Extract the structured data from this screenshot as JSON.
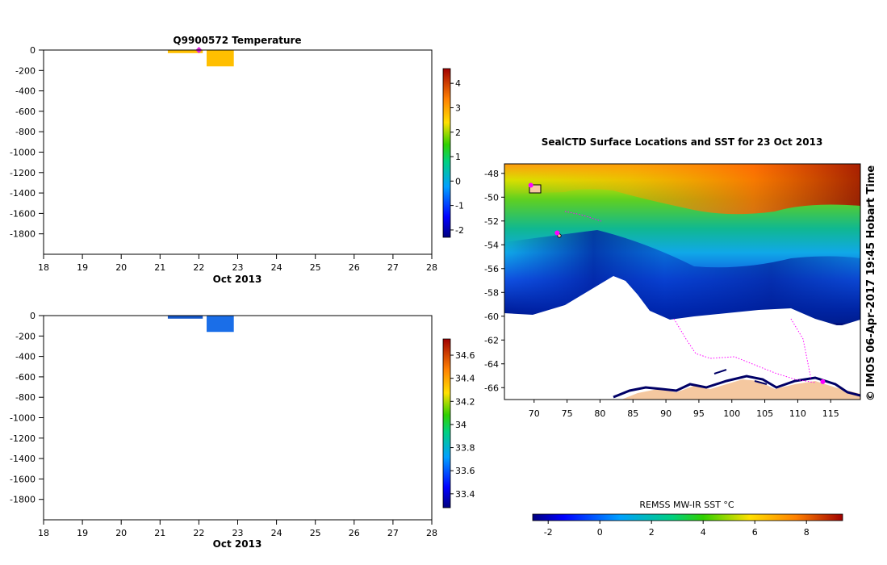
{
  "charts": {
    "temperature_profile": {
      "title": "Q9900572  Temperature",
      "xlabel": "Oct 2013",
      "x_ticks": [
        "18",
        "19",
        "20",
        "21",
        "22",
        "23",
        "24",
        "25",
        "26",
        "27",
        "28"
      ],
      "y_ticks": [
        "0",
        "-200",
        "-400",
        "-600",
        "-800",
        "-1000",
        "-1200",
        "-1400",
        "-1600",
        "-1800"
      ],
      "colorbar_ticks": [
        "-2",
        "-1",
        "0",
        "1",
        "2",
        "3",
        "4"
      ],
      "colors": {
        "fill": "#ffbf00",
        "marker": "#e020e0"
      }
    },
    "salinity_profile": {
      "xlabel": "Oct 2013",
      "x_ticks": [
        "18",
        "19",
        "20",
        "21",
        "22",
        "23",
        "24",
        "25",
        "26",
        "27",
        "28"
      ],
      "y_ticks": [
        "0",
        "-200",
        "-400",
        "-600",
        "-800",
        "-1000",
        "-1200",
        "-1400",
        "-1600",
        "-1800"
      ],
      "colorbar_ticks": [
        "33.4",
        "33.6",
        "33.8",
        "34",
        "34.2",
        "34.4",
        "34.6"
      ],
      "colors": {
        "fill": "#1a6ee8",
        "fill_dark": "#1456c8"
      }
    },
    "sst_map": {
      "title": "SealCTD Surface Locations and SST for 23 Oct 2013",
      "x_ticks": [
        "70",
        "75",
        "80",
        "85",
        "90",
        "95",
        "100",
        "105",
        "110",
        "115"
      ],
      "y_ticks": [
        "-48",
        "-50",
        "-52",
        "-54",
        "-56",
        "-58",
        "-60",
        "-62",
        "-64",
        "-66"
      ],
      "colorbar_label": "REMSS MW-IR SST °C",
      "colorbar_ticks": [
        "-2",
        "0",
        "2",
        "4",
        "6",
        "8"
      ],
      "stamp": "© IMOS 06-Apr-2017 19:45 Hobart Time",
      "colors": {
        "track": "#ff00ff",
        "land": "#f5c8a0",
        "coast": "#000066"
      }
    }
  },
  "chart_data": [
    {
      "type": "bar",
      "title": "Q9900572  Temperature",
      "xlabel": "Oct 2013",
      "ylabel": "",
      "xlim": [
        18,
        28
      ],
      "ylim": [
        -2000,
        0
      ],
      "profiles": [
        {
          "x_start": 21.2,
          "x_end": 22.1,
          "depth": -30
        },
        {
          "x_start": 22.2,
          "x_end": 22.9,
          "depth": -160
        }
      ],
      "marker": {
        "x": 22.0,
        "y": 0
      },
      "colorbar_range": [
        -2.3,
        4.6
      ]
    },
    {
      "type": "bar",
      "title": "",
      "xlabel": "Oct 2013",
      "ylabel": "",
      "xlim": [
        18,
        28
      ],
      "ylim": [
        -2000,
        0
      ],
      "profiles": [
        {
          "x_start": 21.2,
          "x_end": 22.1,
          "depth": -30
        },
        {
          "x_start": 22.2,
          "x_end": 22.9,
          "depth": -160
        }
      ],
      "colorbar_range": [
        33.28,
        34.74
      ]
    },
    {
      "type": "heatmap",
      "title": "SealCTD Surface Locations and SST for 23 Oct 2013",
      "xlabel": "",
      "ylabel": "",
      "xlim": [
        65.5,
        119.5
      ],
      "ylim": [
        -67,
        -47.2
      ],
      "colorbar_label": "REMSS MW-IR SST °C",
      "colorbar_range": [
        -2.6,
        9.4
      ],
      "sst_gradient": [
        {
          "lat": -47.5,
          "sst": 5.5
        },
        {
          "lat": -50,
          "sst": 3.0
        },
        {
          "lat": -52,
          "sst": 1.5
        },
        {
          "lat": -54,
          "sst": 0.5
        },
        {
          "lat": -56,
          "sst": -0.5
        },
        {
          "lat": -58,
          "sst": -1.2
        },
        {
          "lat": -60,
          "sst": -1.8
        }
      ],
      "seal_locations": [
        {
          "lon": 69.5,
          "lat": -49.0
        },
        {
          "lon": 73.5,
          "lat": -53.0
        },
        {
          "lon": 113.8,
          "lat": -65.5
        }
      ]
    }
  ]
}
